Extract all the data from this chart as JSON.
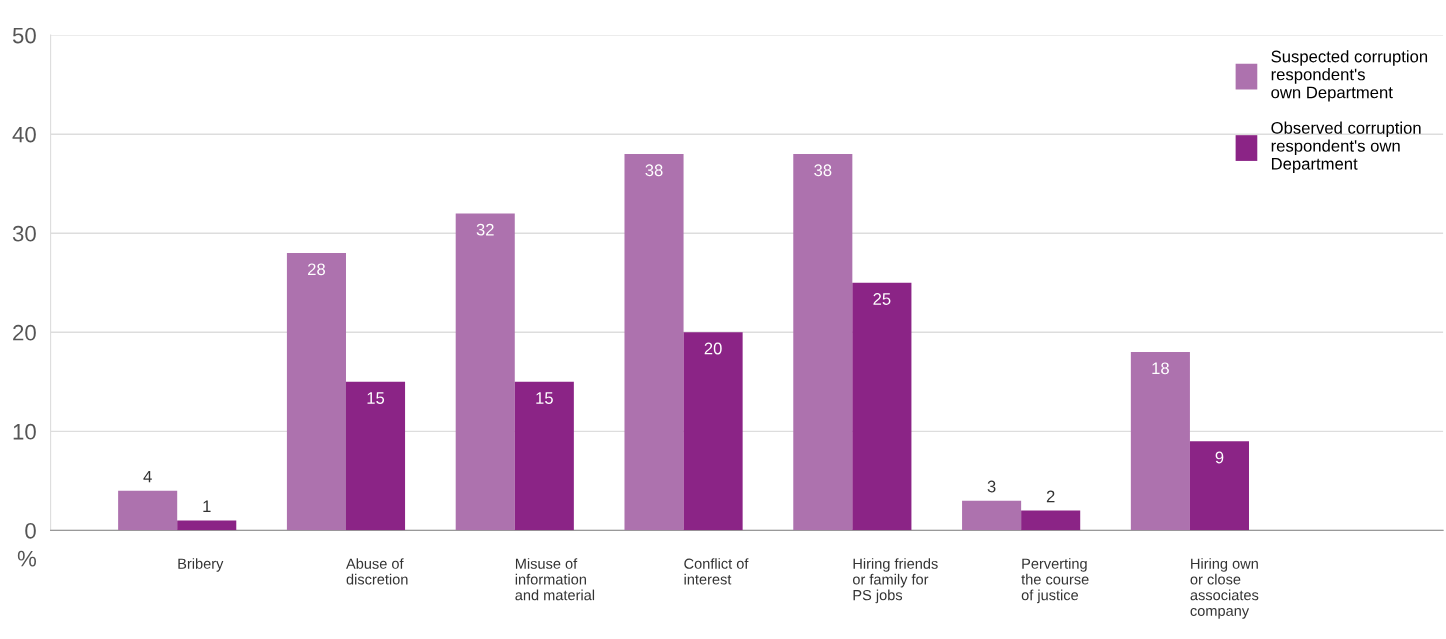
{
  "chart_data": {
    "type": "bar",
    "ylabel": "%",
    "categories": [
      "Bribery",
      "Abuse of\ndiscretion",
      "Misuse of\ninformation\nand material",
      "Conflict of\ninterest",
      "Hiring friends\nor family for\nPS jobs",
      "Perverting\nthe course\nof justice",
      "Hiring own\nor close\nassociates\ncompany"
    ],
    "series": [
      {
        "name": "Suspected corruption\nrespondent's\nown Department",
        "color": "#ad72ae",
        "values": [
          4,
          28,
          32,
          38,
          38,
          3,
          18
        ]
      },
      {
        "name": "Observed corruption\nrespondent's own\nDepartment",
        "color": "#8b2486",
        "values": [
          1,
          15,
          15,
          20,
          25,
          2,
          9
        ]
      }
    ],
    "ylim": [
      0,
      50
    ],
    "yticks": [
      0,
      10,
      20,
      30,
      40,
      50
    ],
    "grid": "y",
    "legend": "top right",
    "data_labels": true
  }
}
